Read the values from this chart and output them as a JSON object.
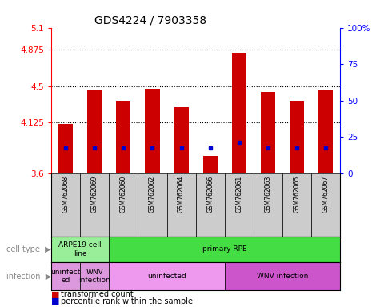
{
  "title": "GDS4224 / 7903358",
  "samples": [
    "GSM762068",
    "GSM762069",
    "GSM762060",
    "GSM762062",
    "GSM762064",
    "GSM762066",
    "GSM762061",
    "GSM762063",
    "GSM762065",
    "GSM762067"
  ],
  "transformed_counts": [
    4.11,
    4.46,
    4.35,
    4.47,
    4.28,
    3.78,
    4.84,
    4.44,
    4.35,
    4.46
  ],
  "percentile_values": [
    3.86,
    3.86,
    3.86,
    3.86,
    3.86,
    3.86,
    3.92,
    3.86,
    3.86,
    3.86
  ],
  "y_min": 3.6,
  "y_max": 5.1,
  "y_ticks": [
    3.6,
    4.125,
    4.5,
    4.875,
    5.1
  ],
  "y_tick_labels": [
    "3.6",
    "4.125",
    "4.5",
    "4.875",
    "5.1"
  ],
  "right_y_ticks": [
    0,
    25,
    50,
    75,
    100
  ],
  "right_y_tick_labels": [
    "0",
    "25",
    "50",
    "75",
    "100%"
  ],
  "bar_color": "#cc0000",
  "percentile_color": "#0000cc",
  "cell_type_row": [
    {
      "label": "ARPE19 cell\nline",
      "start": 0,
      "end": 2,
      "color": "#99ee99"
    },
    {
      "label": "primary RPE",
      "start": 2,
      "end": 10,
      "color": "#44dd44"
    }
  ],
  "infection_row": [
    {
      "label": "uninfect\ned",
      "start": 0,
      "end": 1,
      "color": "#dd99dd"
    },
    {
      "label": "WNV\ninfection",
      "start": 1,
      "end": 2,
      "color": "#dd99dd"
    },
    {
      "label": "uninfected",
      "start": 2,
      "end": 6,
      "color": "#ee99ee"
    },
    {
      "label": "WNV infection",
      "start": 6,
      "end": 10,
      "color": "#cc55cc"
    }
  ],
  "legend_items": [
    {
      "label": "transformed count",
      "color": "#cc0000"
    },
    {
      "label": "percentile rank within the sample",
      "color": "#0000cc"
    }
  ],
  "bar_width": 0.5,
  "title_fontsize": 10,
  "sample_bg_color": "#cccccc",
  "left_label_color": "#888888"
}
